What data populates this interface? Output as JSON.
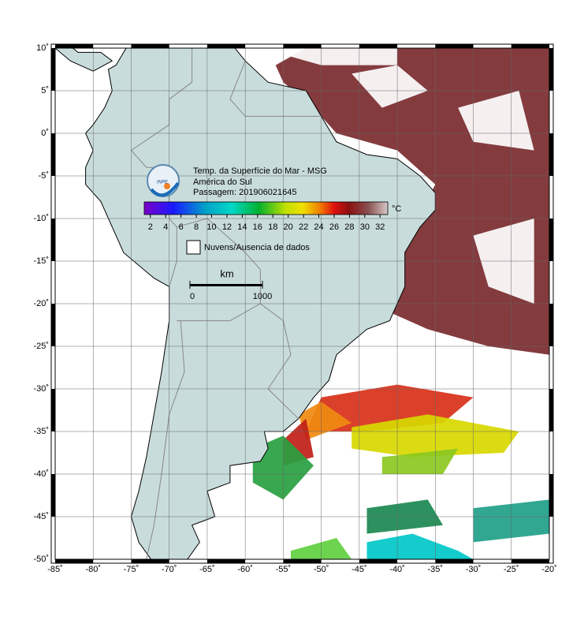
{
  "map": {
    "xlim": [
      -85,
      -20
    ],
    "ylim": [
      -50,
      10
    ],
    "xticks": [
      {
        "value": -85,
        "label": "-85˚"
      },
      {
        "value": -80,
        "label": "-80˚"
      },
      {
        "value": -75,
        "label": "-75˚"
      },
      {
        "value": -70,
        "label": "-70˚"
      },
      {
        "value": -65,
        "label": "-65˚"
      },
      {
        "value": -60,
        "label": "-60˚"
      },
      {
        "value": -55,
        "label": "-55˚"
      },
      {
        "value": -50,
        "label": "-50˚"
      },
      {
        "value": -45,
        "label": "-45˚"
      },
      {
        "value": -40,
        "label": "-40˚"
      },
      {
        "value": -35,
        "label": "-35˚"
      },
      {
        "value": -30,
        "label": "-30˚"
      },
      {
        "value": -25,
        "label": "-25˚"
      },
      {
        "value": -20,
        "label": "-20˚"
      }
    ],
    "yticks": [
      {
        "value": 10,
        "label": "10˚"
      },
      {
        "value": 5,
        "label": "5˚"
      },
      {
        "value": 0,
        "label": "0˚"
      },
      {
        "value": -5,
        "label": "-5˚"
      },
      {
        "value": -10,
        "label": "-10˚"
      },
      {
        "value": -15,
        "label": "-15˚"
      },
      {
        "value": -20,
        "label": "-20˚"
      },
      {
        "value": -25,
        "label": "-25˚"
      },
      {
        "value": -30,
        "label": "-30˚"
      },
      {
        "value": -35,
        "label": "-35˚"
      },
      {
        "value": -40,
        "label": "-40˚"
      },
      {
        "value": -45,
        "label": "-45˚"
      },
      {
        "value": -50,
        "label": "-50˚"
      }
    ]
  },
  "legend": {
    "title": [
      "Temp. da Superfície do Mar - MSG",
      "América do Sul",
      "Passagem: 201906021645"
    ],
    "logo": "INPE",
    "colorbar": {
      "range": [
        1.2,
        33
      ],
      "ticks": [
        2,
        4,
        6,
        8,
        10,
        12,
        14,
        16,
        18,
        20,
        22,
        24,
        26,
        28,
        30,
        32
      ],
      "unit": "°C"
    },
    "no_data": "Nuvens/Ausencia de dados"
  },
  "scale": {
    "title": "km",
    "ticks": [
      0,
      1000
    ]
  }
}
